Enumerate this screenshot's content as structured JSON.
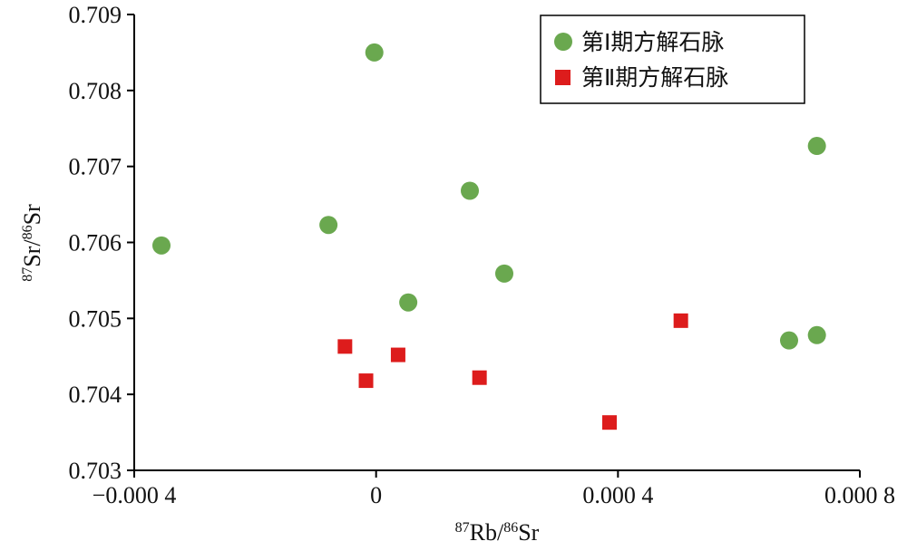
{
  "chart_data": {
    "type": "scatter",
    "xlim": [
      -0.0004,
      0.0008
    ],
    "ylim": [
      0.703,
      0.709
    ],
    "x_ticks": [
      -0.0004,
      0,
      0.0004,
      0.0008
    ],
    "x_tick_labels": [
      "−0.000 4",
      "0",
      "0.000 4",
      "0.000 8"
    ],
    "y_ticks": [
      0.703,
      0.704,
      0.705,
      0.706,
      0.707,
      0.708,
      0.709
    ],
    "y_tick_labels": [
      "0.703",
      "0.704",
      "0.705",
      "0.706",
      "0.707",
      "0.708",
      "0.709"
    ],
    "xlabel": {
      "sup1": "87",
      "main1": "Rb/",
      "sup2": "86",
      "main2": "Sr"
    },
    "ylabel": {
      "sup1": "87",
      "main1": "Sr/",
      "sup2": "86",
      "main2": "Sr"
    },
    "grid": false,
    "legend_position": "top-right",
    "series": [
      {
        "name": "第Ⅰ期方解石脉",
        "marker": "circle",
        "color": "#6aa84f",
        "points": [
          [
            -0.000355,
            0.70596
          ],
          [
            -7.88e-05,
            0.70623
          ],
          [
            -2.9e-06,
            0.7085
          ],
          [
            5.32e-05,
            0.70521
          ],
          [
            0.000155,
            0.70668
          ],
          [
            0.000212,
            0.70559
          ],
          [
            0.000683,
            0.70471
          ],
          [
            0.000729,
            0.70727
          ],
          [
            0.000729,
            0.70478
          ]
        ]
      },
      {
        "name": "第Ⅱ期方解石脉",
        "marker": "square",
        "color": "#dd1c1c",
        "points": [
          [
            -5.15e-05,
            0.70463
          ],
          [
            -1.67e-05,
            0.70418
          ],
          [
            3.64e-05,
            0.70452
          ],
          [
            0.000171,
            0.70422
          ],
          [
            0.000386,
            0.70363
          ],
          [
            0.000504,
            0.70497
          ]
        ]
      }
    ]
  }
}
